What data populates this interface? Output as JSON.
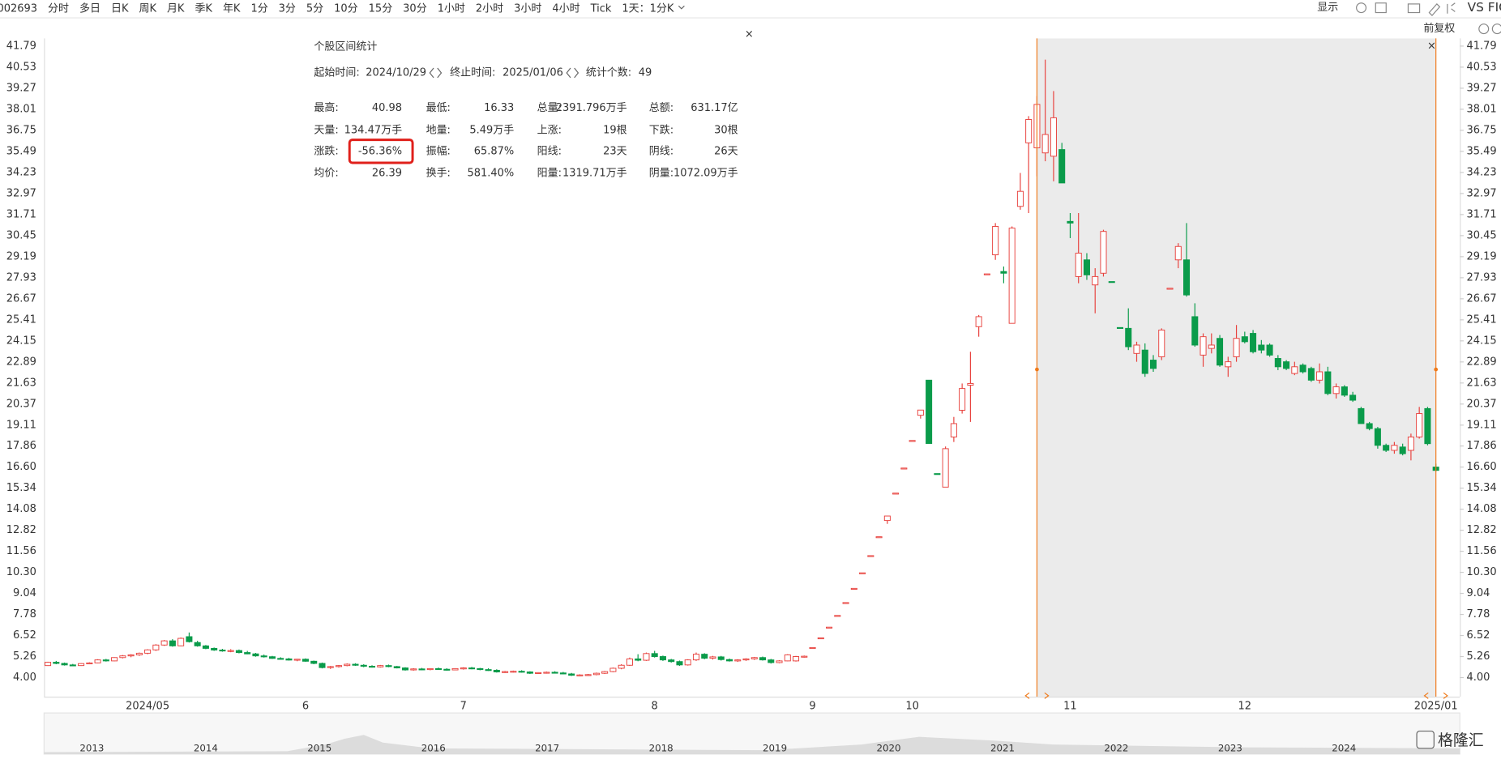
{
  "toolbar": {
    "symbol": "002693",
    "periods": [
      "分时",
      "多日",
      "日K",
      "周K",
      "月K",
      "季K",
      "年K",
      "1分",
      "3分",
      "5分",
      "10分",
      "15分",
      "30分",
      "1小时",
      "2小时",
      "3小时",
      "4小时",
      "Tick",
      "1天：1分K"
    ],
    "active": 2,
    "display": "显示",
    "compare": "VS FIC"
  },
  "adjust_label": "前复权",
  "stats_panel": {
    "title": "个股区间统计",
    "start_label": "起始时间:",
    "start": "2024/10/29",
    "end_label": "终止时间:",
    "end": "2025/01/06",
    "count_label": "统计个数:",
    "count": 49,
    "rows": [
      [
        {
          "label": "最高:",
          "value": "40.98",
          "color": "red"
        },
        {
          "label": "最低:",
          "value": "16.33",
          "color": "green"
        },
        {
          "label": "总量:",
          "value": "2391.796万手",
          "color": "gray"
        },
        {
          "label": "总额:",
          "value": "631.17亿",
          "color": "gray"
        }
      ],
      [
        {
          "label": "天量:",
          "value": "134.47万手",
          "color": "gray"
        },
        {
          "label": "地量:",
          "value": "5.49万手",
          "color": "gray"
        },
        {
          "label": "上涨:",
          "value": "19根",
          "color": "red"
        },
        {
          "label": "下跌:",
          "value": "30根",
          "color": "green"
        }
      ],
      [
        {
          "label": "涨跌:",
          "value": "-56.36%",
          "color": "green",
          "boxed": true
        },
        {
          "label": "振幅:",
          "value": "65.87%",
          "color": "gray"
        },
        {
          "label": "阳线:",
          "value": "23天",
          "color": "red"
        },
        {
          "label": "阴线:",
          "value": "26天",
          "color": "green"
        }
      ],
      [
        {
          "label": "均价:",
          "value": "26.39",
          "color": "green"
        },
        {
          "label": "换手:",
          "value": "581.40%",
          "color": "gray"
        },
        {
          "label": "阳量:",
          "value": "1319.71万手",
          "color": "red"
        },
        {
          "label": "阴量:",
          "value": "1072.09万手",
          "color": "green"
        }
      ]
    ]
  },
  "chart_data": {
    "type": "candlestick",
    "up_color": "#e8413d",
    "down_color": "#0a9b4a",
    "grid": false,
    "highlight_range": [
      119,
      167
    ],
    "ylim": [
      2.86,
      42.25
    ],
    "yticks": [
      {
        "value": 4,
        "label": "4.00"
      },
      5.26,
      6.52,
      7.78,
      9.04,
      {
        "value": 10.3,
        "label": "10.30"
      },
      11.56,
      12.82,
      14.08,
      15.34,
      {
        "value": 16.6,
        "label": "16.60"
      },
      17.86,
      19.11,
      20.37,
      21.63,
      22.89,
      24.15,
      25.41,
      26.67,
      27.93,
      29.19,
      30.45,
      31.71,
      32.97,
      34.23,
      35.49,
      36.75,
      38.01,
      39.27,
      40.53,
      41.79
    ],
    "categories": [
      null,
      null,
      null,
      null,
      null,
      null,
      null,
      null,
      null,
      null,
      null,
      null,
      "2024/05",
      null,
      null,
      null,
      null,
      null,
      null,
      null,
      null,
      null,
      null,
      null,
      null,
      null,
      null,
      null,
      null,
      null,
      null,
      "6",
      null,
      null,
      null,
      null,
      null,
      null,
      null,
      null,
      null,
      null,
      null,
      null,
      null,
      null,
      null,
      null,
      null,
      null,
      "7",
      null,
      null,
      null,
      null,
      null,
      null,
      null,
      null,
      null,
      null,
      null,
      null,
      null,
      null,
      null,
      null,
      null,
      null,
      null,
      null,
      null,
      null,
      "8",
      null,
      null,
      null,
      null,
      null,
      null,
      null,
      null,
      null,
      null,
      null,
      null,
      null,
      null,
      null,
      null,
      null,
      null,
      "9",
      null,
      null,
      null,
      null,
      null,
      null,
      null,
      null,
      null,
      null,
      null,
      "10",
      null,
      null,
      null,
      null,
      null,
      null,
      null,
      null,
      null,
      null,
      null,
      null,
      null,
      null,
      null,
      null,
      null,
      null,
      "11",
      null,
      null,
      null,
      null,
      null,
      null,
      null,
      null,
      null,
      null,
      null,
      null,
      null,
      null,
      null,
      null,
      null,
      null,
      null,
      null,
      "12",
      null,
      null,
      null,
      null,
      null,
      null,
      null,
      null,
      null,
      null,
      null,
      null,
      null,
      null,
      null,
      null,
      null,
      null,
      null,
      null,
      null,
      null,
      "2025/01"
    ],
    "candles": [
      [
        4.72,
        4.95,
        4.7,
        4.92
      ],
      [
        4.92,
        5.0,
        4.8,
        4.85
      ],
      [
        4.85,
        4.9,
        4.72,
        4.76
      ],
      [
        4.76,
        4.82,
        4.68,
        4.72
      ],
      [
        4.72,
        4.86,
        4.7,
        4.84
      ],
      [
        4.84,
        4.92,
        4.8,
        4.88
      ],
      [
        4.88,
        5.1,
        4.86,
        5.06
      ],
      [
        5.06,
        5.12,
        4.96,
        5.0
      ],
      [
        5.0,
        5.22,
        4.98,
        5.2
      ],
      [
        5.2,
        5.35,
        5.15,
        5.3
      ],
      [
        5.3,
        5.4,
        5.22,
        5.36
      ],
      [
        5.36,
        5.5,
        5.3,
        5.46
      ],
      [
        5.46,
        5.7,
        5.4,
        5.66
      ],
      [
        5.66,
        6.0,
        5.6,
        5.95
      ],
      [
        5.95,
        6.25,
        5.9,
        6.2
      ],
      [
        6.2,
        6.3,
        5.85,
        5.9
      ],
      [
        5.9,
        6.4,
        5.88,
        6.35
      ],
      [
        6.45,
        6.7,
        6.1,
        6.15
      ],
      [
        6.1,
        6.2,
        5.85,
        5.9
      ],
      [
        5.9,
        5.95,
        5.7,
        5.75
      ],
      [
        5.75,
        5.8,
        5.6,
        5.65
      ],
      [
        5.65,
        5.72,
        5.55,
        5.6
      ],
      [
        5.6,
        5.7,
        5.52,
        5.62
      ],
      [
        5.62,
        5.68,
        5.45,
        5.5
      ],
      [
        5.5,
        5.6,
        5.4,
        5.42
      ],
      [
        5.42,
        5.48,
        5.25,
        5.3
      ],
      [
        5.3,
        5.38,
        5.2,
        5.25
      ],
      [
        5.25,
        5.3,
        5.12,
        5.15
      ],
      [
        5.15,
        5.22,
        5.08,
        5.12
      ],
      [
        5.12,
        5.18,
        5.02,
        5.05
      ],
      [
        5.05,
        5.12,
        4.98,
        5.1
      ],
      [
        5.1,
        5.15,
        4.95,
        4.98
      ],
      [
        4.98,
        5.02,
        4.8,
        4.85
      ],
      [
        4.85,
        4.9,
        4.55,
        4.6
      ],
      [
        4.6,
        4.7,
        4.52,
        4.66
      ],
      [
        4.66,
        4.75,
        4.6,
        4.72
      ],
      [
        4.72,
        4.85,
        4.68,
        4.8
      ],
      [
        4.8,
        4.86,
        4.7,
        4.74
      ],
      [
        4.74,
        4.8,
        4.62,
        4.68
      ],
      [
        4.68,
        4.74,
        4.6,
        4.64
      ],
      [
        4.64,
        4.76,
        4.6,
        4.72
      ],
      [
        4.72,
        4.78,
        4.62,
        4.66
      ],
      [
        4.66,
        4.7,
        4.55,
        4.58
      ],
      [
        4.58,
        4.62,
        4.42,
        4.46
      ],
      [
        4.46,
        4.56,
        4.42,
        4.52
      ],
      [
        4.52,
        4.58,
        4.44,
        4.48
      ],
      [
        4.48,
        4.56,
        4.44,
        4.54
      ],
      [
        4.54,
        4.6,
        4.46,
        4.5
      ],
      [
        4.5,
        4.56,
        4.42,
        4.46
      ],
      [
        4.46,
        4.56,
        4.44,
        4.54
      ],
      [
        4.54,
        4.62,
        4.48,
        4.58
      ],
      [
        4.58,
        4.64,
        4.5,
        4.54
      ],
      [
        4.54,
        4.58,
        4.44,
        4.48
      ],
      [
        4.48,
        4.56,
        4.4,
        4.44
      ],
      [
        4.44,
        4.5,
        4.3,
        4.34
      ],
      [
        4.34,
        4.4,
        4.28,
        4.36
      ],
      [
        4.36,
        4.42,
        4.3,
        4.38
      ],
      [
        4.38,
        4.44,
        4.3,
        4.34
      ],
      [
        4.34,
        4.38,
        4.22,
        4.26
      ],
      [
        4.26,
        4.32,
        4.22,
        4.3
      ],
      [
        4.3,
        4.36,
        4.24,
        4.32
      ],
      [
        4.32,
        4.38,
        4.26,
        4.28
      ],
      [
        4.28,
        4.34,
        4.2,
        4.22
      ],
      [
        4.22,
        4.28,
        4.1,
        4.14
      ],
      [
        4.14,
        4.2,
        4.08,
        4.16
      ],
      [
        4.16,
        4.22,
        4.1,
        4.18
      ],
      [
        4.18,
        4.3,
        4.14,
        4.26
      ],
      [
        4.26,
        4.4,
        4.22,
        4.36
      ],
      [
        4.36,
        4.6,
        4.32,
        4.56
      ],
      [
        4.56,
        4.8,
        4.5,
        4.74
      ],
      [
        4.74,
        5.2,
        4.7,
        5.12
      ],
      [
        5.12,
        5.4,
        4.98,
        5.04
      ],
      [
        5.04,
        5.5,
        5.0,
        5.44
      ],
      [
        5.44,
        5.6,
        5.2,
        5.26
      ],
      [
        5.26,
        5.32,
        5.0,
        5.06
      ],
      [
        5.06,
        5.12,
        4.9,
        4.96
      ],
      [
        4.96,
        5.02,
        4.7,
        4.76
      ],
      [
        4.76,
        5.1,
        4.72,
        5.06
      ],
      [
        5.06,
        5.5,
        5.0,
        5.4
      ],
      [
        5.4,
        5.46,
        5.1,
        5.16
      ],
      [
        5.16,
        5.3,
        5.08,
        5.24
      ],
      [
        5.24,
        5.3,
        5.02,
        5.08
      ],
      [
        5.08,
        5.14,
        4.96,
        5.0
      ],
      [
        5.0,
        5.1,
        4.94,
        5.06
      ],
      [
        5.06,
        5.16,
        5.0,
        5.12
      ],
      [
        5.12,
        5.24,
        5.06,
        5.2
      ],
      [
        5.2,
        5.26,
        5.02,
        5.06
      ],
      [
        5.06,
        5.12,
        4.84,
        4.9
      ],
      [
        4.9,
        5.04,
        4.86,
        5.0
      ],
      [
        5.0,
        5.4,
        4.98,
        5.36
      ],
      [
        5.0,
        5.3,
        4.96,
        5.26
      ],
      [
        5.26,
        5.32,
        5.2,
        5.28
      ],
      [
        5.8,
        5.8,
        5.8,
        5.8
      ],
      [
        6.38,
        6.38,
        6.38,
        6.38
      ],
      [
        7.02,
        7.02,
        7.02,
        7.02
      ],
      [
        7.72,
        7.72,
        7.72,
        7.72
      ],
      [
        8.49,
        8.49,
        8.49,
        8.49
      ],
      [
        9.34,
        9.34,
        9.34,
        9.34
      ],
      [
        10.27,
        10.27,
        10.27,
        10.27
      ],
      [
        11.3,
        11.3,
        11.3,
        11.3
      ],
      [
        12.43,
        12.43,
        12.43,
        12.43
      ],
      [
        13.4,
        13.67,
        13.2,
        13.67
      ],
      [
        15.04,
        15.04,
        15.04,
        15.04
      ],
      [
        16.54,
        16.54,
        16.54,
        16.54
      ],
      [
        18.19,
        18.19,
        18.19,
        18.19
      ],
      [
        19.7,
        20.01,
        19.5,
        20.01
      ],
      [
        21.8,
        21.8,
        18.01,
        18.01
      ],
      [
        16.21,
        16.21,
        16.21,
        16.21
      ],
      [
        15.4,
        17.83,
        15.4,
        17.7
      ],
      [
        18.4,
        19.6,
        18.1,
        19.2
      ],
      [
        20.0,
        21.6,
        19.8,
        21.3
      ],
      [
        21.5,
        23.5,
        19.3,
        21.6
      ],
      [
        25.0,
        25.7,
        24.4,
        25.6
      ],
      [
        28.16,
        28.16,
        28.16,
        28.16
      ],
      [
        29.3,
        31.2,
        29.0,
        31.0
      ],
      [
        28.3,
        28.6,
        27.6,
        28.2
      ],
      [
        25.2,
        31.0,
        25.2,
        30.9
      ],
      [
        32.2,
        34.2,
        32.0,
        33.1
      ],
      [
        36.0,
        37.6,
        31.8,
        37.4
      ],
      [
        35.7,
        38.8,
        34.0,
        38.3
      ],
      [
        35.4,
        40.98,
        34.9,
        36.5
      ],
      [
        35.2,
        39.1,
        33.7,
        37.5
      ],
      [
        35.6,
        36.0,
        33.6,
        33.6
      ],
      [
        31.3,
        31.8,
        30.3,
        31.2
      ],
      [
        28.0,
        31.8,
        27.6,
        29.4
      ],
      [
        29.0,
        29.4,
        27.8,
        28.1
      ],
      [
        27.5,
        28.5,
        25.8,
        28.0
      ],
      [
        28.2,
        30.8,
        28.0,
        30.7
      ],
      [
        27.7,
        27.7,
        27.7,
        27.7
      ],
      [
        24.95,
        24.95,
        24.9,
        24.92
      ],
      [
        24.9,
        26.1,
        23.6,
        23.8
      ],
      [
        23.4,
        24.1,
        22.9,
        23.9
      ],
      [
        23.6,
        24.0,
        22.0,
        22.2
      ],
      [
        23.0,
        23.3,
        22.3,
        22.5
      ],
      [
        23.2,
        24.9,
        23.0,
        24.8
      ],
      [
        27.3,
        27.3,
        27.3,
        27.3
      ],
      [
        29.0,
        30.0,
        28.5,
        29.8
      ],
      [
        29.0,
        31.2,
        26.8,
        26.9
      ],
      [
        25.6,
        26.4,
        23.8,
        23.9
      ],
      [
        23.3,
        24.6,
        22.6,
        24.4
      ],
      [
        23.7,
        24.6,
        23.4,
        23.9
      ],
      [
        24.3,
        24.5,
        22.6,
        22.7
      ],
      [
        22.6,
        23.2,
        22.0,
        22.9
      ],
      [
        23.2,
        25.1,
        22.9,
        24.3
      ],
      [
        24.4,
        24.7,
        24.0,
        24.1
      ],
      [
        24.6,
        24.8,
        23.4,
        23.5
      ],
      [
        23.9,
        24.2,
        23.4,
        23.6
      ],
      [
        23.9,
        24.0,
        23.2,
        23.3
      ],
      [
        23.1,
        23.3,
        22.4,
        22.6
      ],
      [
        22.9,
        23.0,
        22.4,
        22.5
      ],
      [
        22.2,
        22.9,
        22.1,
        22.6
      ],
      [
        22.7,
        22.8,
        22.2,
        22.3
      ],
      [
        22.5,
        22.6,
        21.7,
        21.8
      ],
      [
        21.8,
        22.8,
        21.6,
        22.3
      ],
      [
        22.3,
        22.6,
        20.9,
        21.0
      ],
      [
        21.0,
        21.6,
        20.7,
        21.4
      ],
      [
        21.4,
        21.5,
        20.8,
        20.9
      ],
      [
        20.9,
        21.1,
        20.5,
        20.6
      ],
      [
        20.1,
        20.2,
        19.2,
        19.2
      ],
      [
        19.2,
        19.3,
        18.8,
        18.9
      ],
      [
        18.9,
        19.0,
        17.7,
        17.9
      ],
      [
        17.9,
        18.0,
        17.5,
        17.6
      ],
      [
        17.6,
        18.1,
        17.4,
        17.9
      ],
      [
        17.8,
        18.0,
        17.3,
        17.4
      ],
      [
        17.6,
        18.6,
        17.0,
        18.4
      ],
      [
        18.4,
        20.2,
        18.3,
        19.8
      ],
      [
        20.1,
        20.2,
        17.9,
        18.0
      ],
      [
        16.6,
        16.8,
        16.33,
        16.4
      ]
    ]
  },
  "navigator": {
    "years": [
      "2013",
      "2014",
      "2015",
      "2016",
      "2017",
      "2018",
      "2019",
      "2020",
      "2021",
      "2022",
      "2023",
      "2024"
    ]
  },
  "watermark": "格隆汇"
}
